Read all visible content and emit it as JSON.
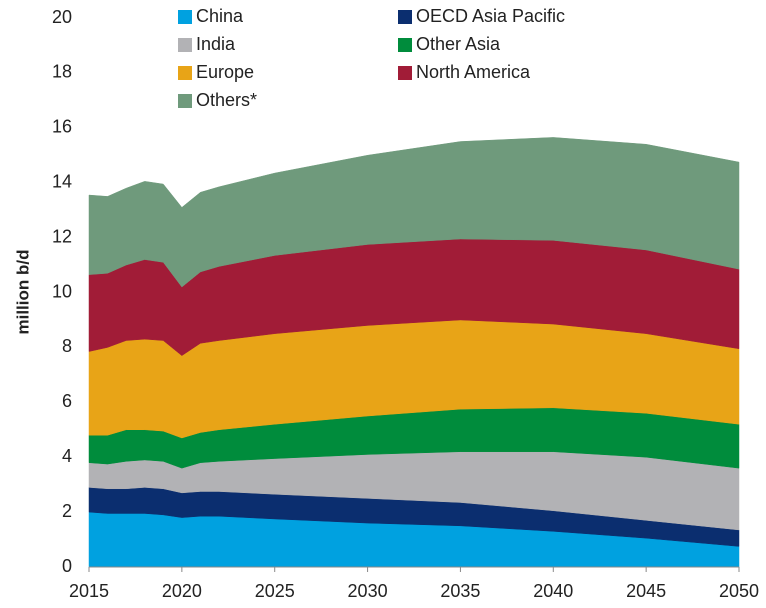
{
  "chart_data": {
    "type": "stacked_area",
    "y_label": "million b/d",
    "x": [
      2015,
      2016,
      2017,
      2018,
      2019,
      2020,
      2021,
      2022,
      2025,
      2030,
      2035,
      2040,
      2045,
      2050
    ],
    "xlim": [
      2015,
      2050
    ],
    "xticks": [
      2015,
      2020,
      2025,
      2030,
      2035,
      2040,
      2045,
      2050
    ],
    "ylim": [
      0,
      20
    ],
    "yticks": [
      0,
      2,
      4,
      6,
      8,
      10,
      12,
      14,
      16,
      18,
      20
    ],
    "grid": false,
    "legend": "top",
    "series": [
      {
        "name": "China",
        "color": "#00a1e0",
        "values": [
          2.0,
          1.95,
          1.95,
          1.95,
          1.9,
          1.8,
          1.85,
          1.85,
          1.75,
          1.6,
          1.5,
          1.3,
          1.05,
          0.75
        ]
      },
      {
        "name": "OECD Asia Pacific",
        "color": "#0b2e6f",
        "values": [
          0.9,
          0.9,
          0.9,
          0.95,
          0.95,
          0.9,
          0.9,
          0.9,
          0.9,
          0.9,
          0.85,
          0.75,
          0.65,
          0.6
        ]
      },
      {
        "name": "India",
        "color": "#b2b2b5",
        "values": [
          0.9,
          0.9,
          1.0,
          1.0,
          1.0,
          0.9,
          1.05,
          1.1,
          1.3,
          1.6,
          1.85,
          2.15,
          2.3,
          2.25
        ]
      },
      {
        "name": "Other Asia",
        "color": "#008c3c",
        "values": [
          1.0,
          1.05,
          1.15,
          1.1,
          1.1,
          1.1,
          1.1,
          1.15,
          1.25,
          1.4,
          1.55,
          1.6,
          1.6,
          1.6
        ]
      },
      {
        "name": "Europe",
        "color": "#e8a417",
        "values": [
          3.05,
          3.2,
          3.25,
          3.3,
          3.3,
          3.0,
          3.25,
          3.25,
          3.3,
          3.3,
          3.25,
          3.05,
          2.9,
          2.75
        ]
      },
      {
        "name": "North America",
        "color": "#a11c37",
        "values": [
          2.8,
          2.7,
          2.75,
          2.9,
          2.85,
          2.5,
          2.6,
          2.7,
          2.85,
          2.95,
          2.95,
          3.05,
          3.05,
          2.9
        ]
      },
      {
        "name": "Others*",
        "color": "#6f9a7c",
        "values": [
          2.9,
          2.8,
          2.8,
          2.85,
          2.85,
          2.9,
          2.9,
          2.9,
          3.0,
          3.25,
          3.55,
          3.75,
          3.85,
          3.9
        ]
      }
    ]
  }
}
